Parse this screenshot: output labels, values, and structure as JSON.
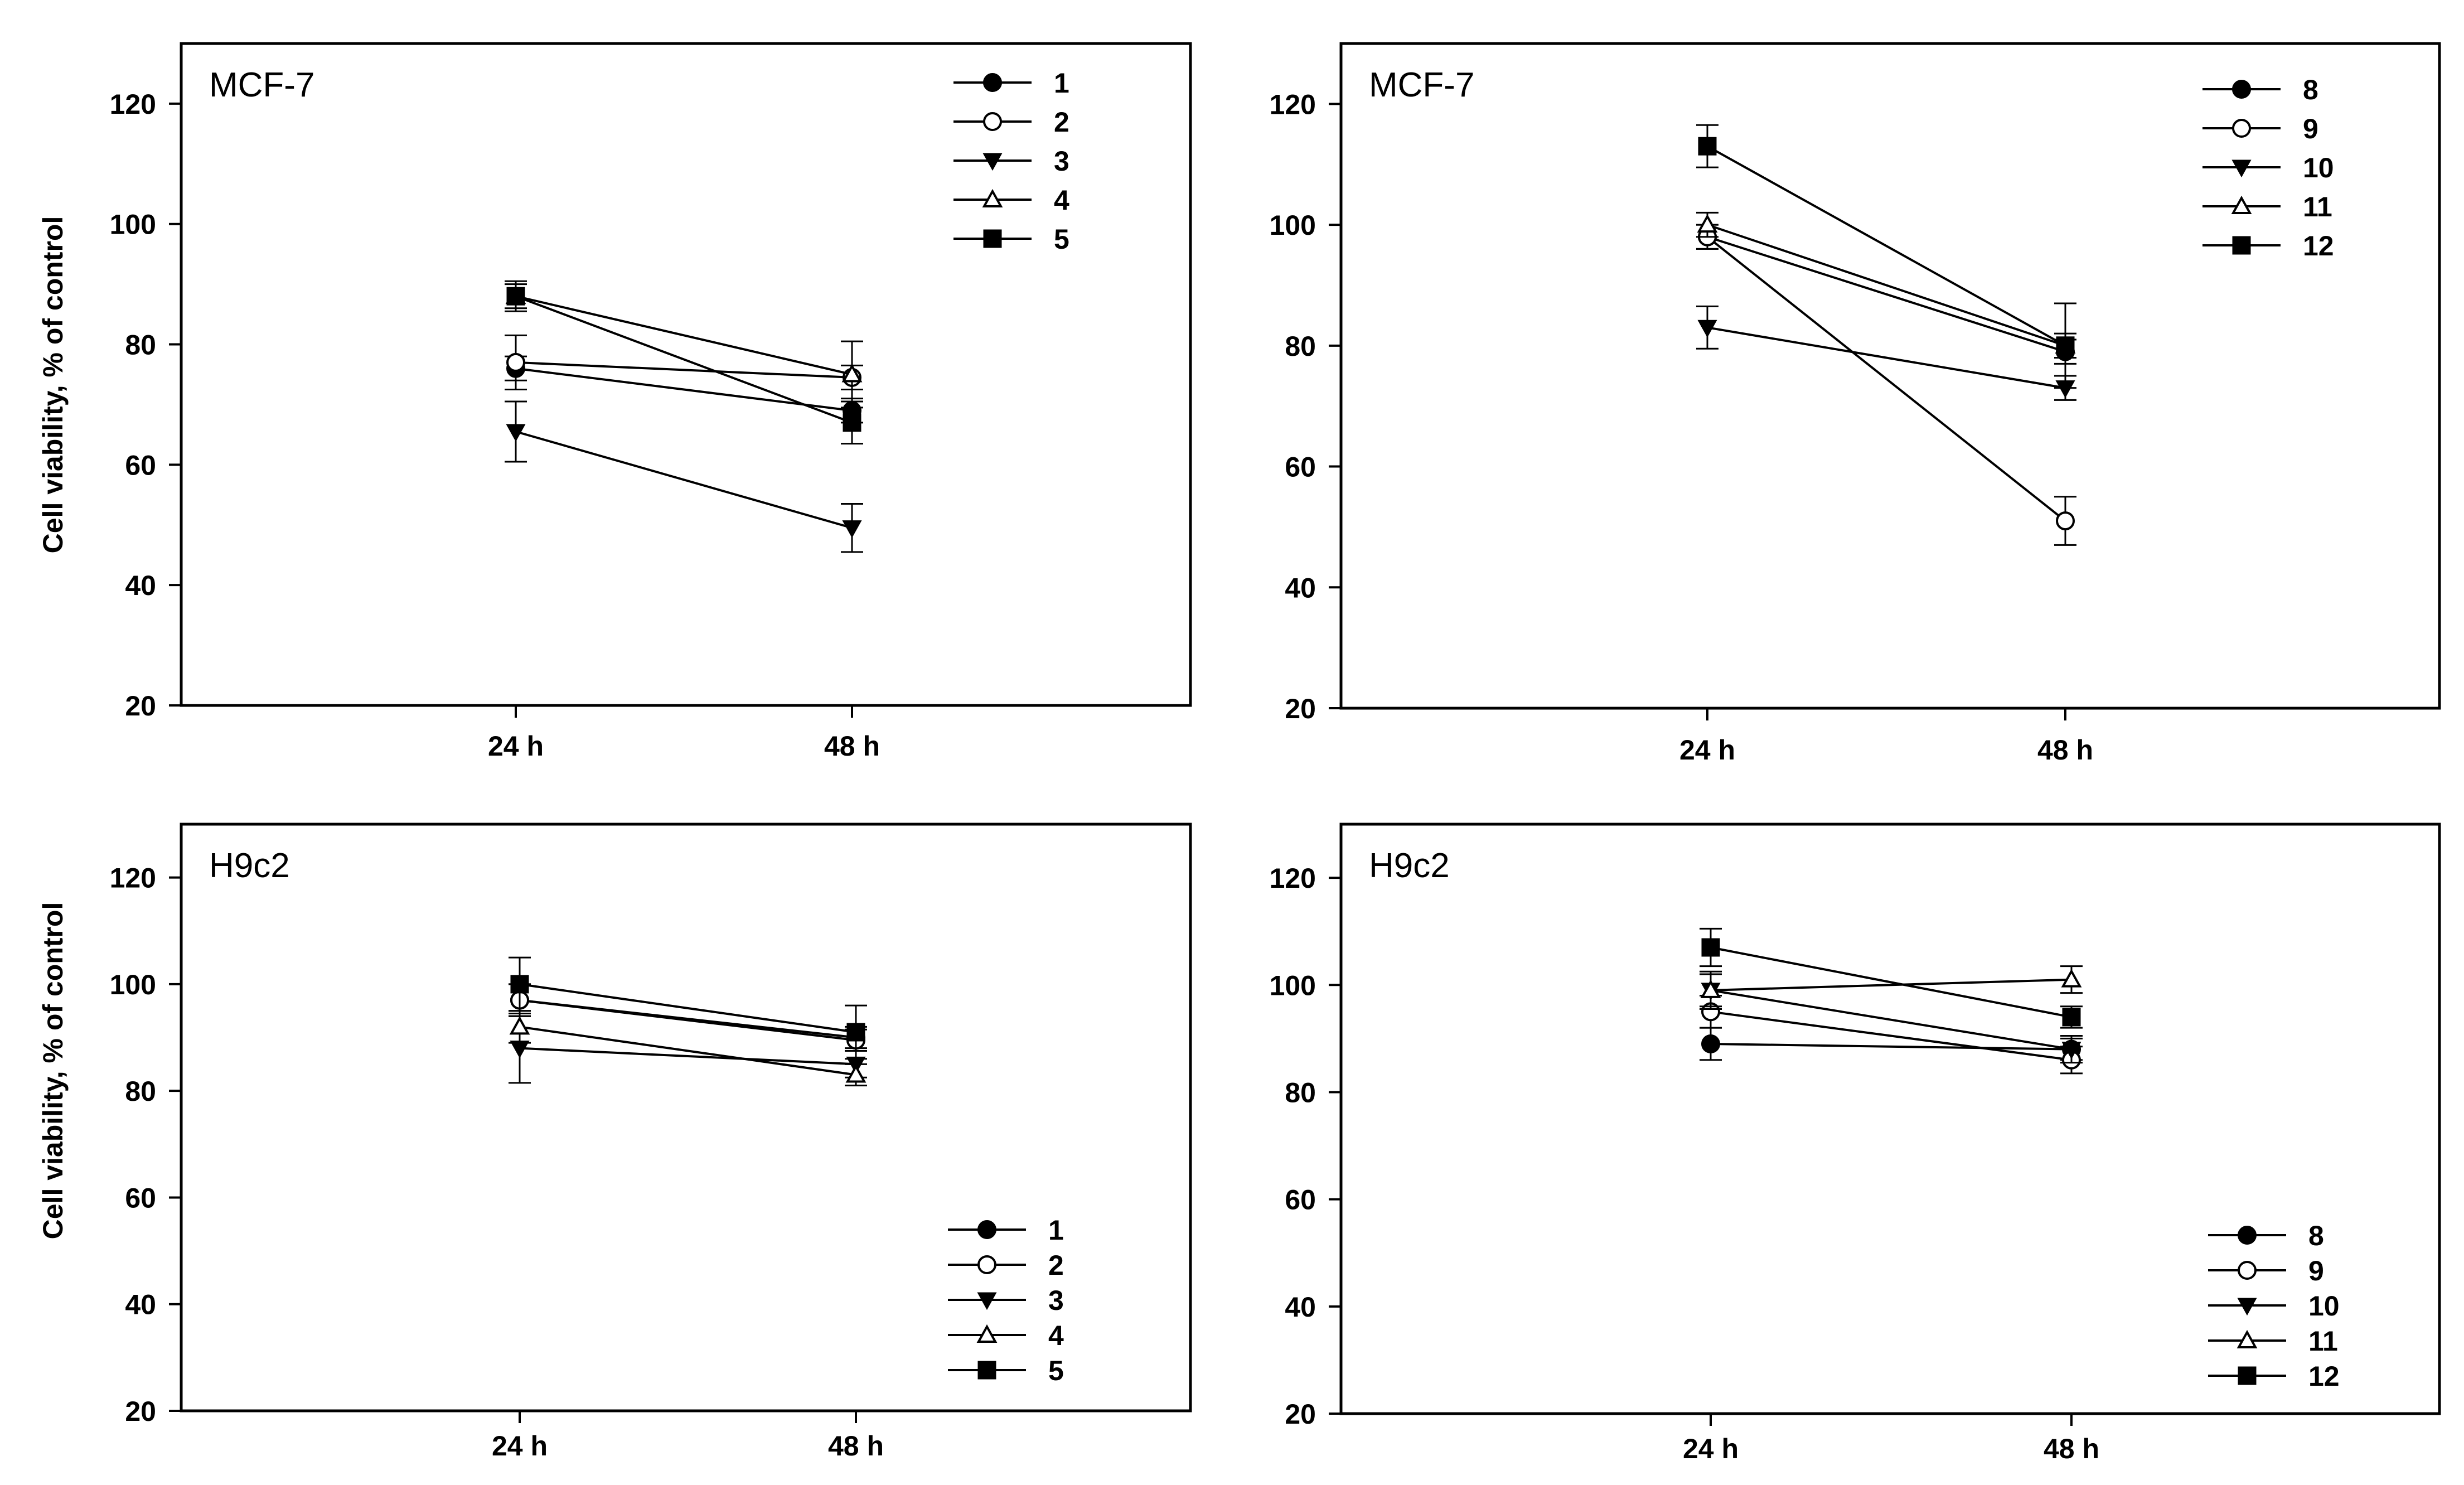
{
  "figure": {
    "ylabel": "Cell viability, % of control"
  },
  "chart_data": [
    {
      "type": "line",
      "cell_line": "MCF-7",
      "categories": [
        "24 h",
        "48 h"
      ],
      "ylim": [
        20,
        130
      ],
      "yticks": [
        20,
        40,
        60,
        80,
        100,
        120
      ],
      "ylabel": "Cell viability, % of control",
      "legend_position": "top-right",
      "series": [
        {
          "name": "1",
          "marker": "filled-circle",
          "values": [
            76,
            69
          ],
          "errors": [
            2,
            2
          ]
        },
        {
          "name": "2",
          "marker": "open-circle",
          "values": [
            77,
            74.5
          ],
          "errors": [
            4.5,
            2
          ]
        },
        {
          "name": "3",
          "marker": "filled-triangle-down",
          "values": [
            65.5,
            49.5
          ],
          "errors": [
            5,
            4
          ]
        },
        {
          "name": "4",
          "marker": "open-triangle-up",
          "values": [
            88,
            75
          ],
          "errors": [
            2,
            5.5
          ]
        },
        {
          "name": "5",
          "marker": "filled-square",
          "values": [
            88,
            67
          ],
          "errors": [
            2.5,
            3.5
          ]
        }
      ]
    },
    {
      "type": "line",
      "cell_line": "MCF-7",
      "categories": [
        "24 h",
        "48 h"
      ],
      "ylim": [
        20,
        130
      ],
      "yticks": [
        20,
        40,
        60,
        80,
        100,
        120
      ],
      "ylabel": "",
      "legend_position": "top-right",
      "series": [
        {
          "name": "8",
          "marker": "filled-circle",
          "values": [
            98,
            79
          ],
          "errors": [
            2,
            2
          ]
        },
        {
          "name": "9",
          "marker": "open-circle",
          "values": [
            98,
            51
          ],
          "errors": [
            2,
            4
          ]
        },
        {
          "name": "10",
          "marker": "filled-triangle-down",
          "values": [
            83,
            73
          ],
          "errors": [
            3.5,
            2
          ]
        },
        {
          "name": "11",
          "marker": "open-triangle-up",
          "values": [
            100,
            80
          ],
          "errors": [
            2,
            7
          ]
        },
        {
          "name": "12",
          "marker": "filled-square",
          "values": [
            113,
            80
          ],
          "errors": [
            3.5,
            2
          ]
        }
      ]
    },
    {
      "type": "line",
      "cell_line": "H9c2",
      "categories": [
        "24 h",
        "48 h"
      ],
      "ylim": [
        20,
        130
      ],
      "yticks": [
        20,
        40,
        60,
        80,
        100,
        120
      ],
      "ylabel": "Cell viability, % of control",
      "legend_position": "bottom-right",
      "series": [
        {
          "name": "1",
          "marker": "filled-circle",
          "values": [
            97,
            90
          ],
          "errors": [
            3,
            2
          ]
        },
        {
          "name": "2",
          "marker": "open-circle",
          "values": [
            97,
            89.5
          ],
          "errors": [
            3,
            2
          ]
        },
        {
          "name": "3",
          "marker": "filled-triangle-down",
          "values": [
            88,
            85
          ],
          "errors": [
            6.5,
            2.5
          ]
        },
        {
          "name": "4",
          "marker": "open-triangle-up",
          "values": [
            92,
            83
          ],
          "errors": [
            3,
            2
          ]
        },
        {
          "name": "5",
          "marker": "filled-square",
          "values": [
            100,
            91
          ],
          "errors": [
            5,
            5
          ]
        }
      ]
    },
    {
      "type": "line",
      "cell_line": "H9c2",
      "categories": [
        "24 h",
        "48 h"
      ],
      "ylim": [
        20,
        130
      ],
      "yticks": [
        20,
        40,
        60,
        80,
        100,
        120
      ],
      "ylabel": "",
      "legend_position": "bottom-right",
      "series": [
        {
          "name": "8",
          "marker": "filled-circle",
          "values": [
            89,
            88
          ],
          "errors": [
            3,
            2
          ]
        },
        {
          "name": "9",
          "marker": "open-circle",
          "values": [
            95,
            86
          ],
          "errors": [
            3,
            2.5
          ]
        },
        {
          "name": "10",
          "marker": "filled-triangle-down",
          "values": [
            99,
            88
          ],
          "errors": [
            3.5,
            2.5
          ]
        },
        {
          "name": "11",
          "marker": "open-triangle-up",
          "values": [
            99,
            101
          ],
          "errors": [
            3,
            2.5
          ]
        },
        {
          "name": "12",
          "marker": "filled-square",
          "values": [
            107,
            94
          ],
          "errors": [
            3.5,
            2
          ]
        }
      ]
    }
  ]
}
